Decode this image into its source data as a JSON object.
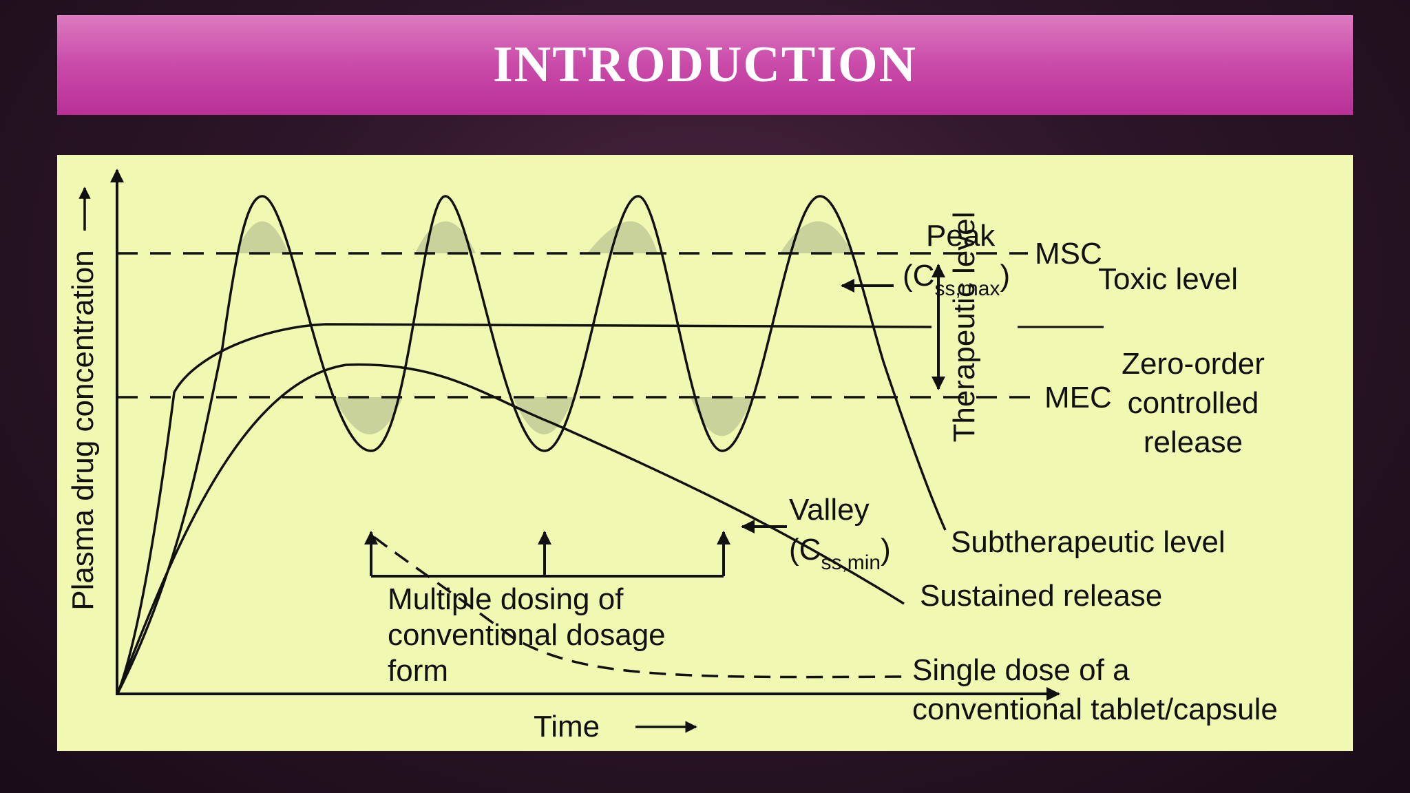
{
  "slide": {
    "title": "INTRODUCTION"
  },
  "diagram": {
    "y_axis_label": "Plasma drug concentration",
    "x_axis_label": "Time",
    "levels": {
      "msc": "MSC",
      "mec": "MEC",
      "toxic": "Toxic level",
      "therapeutic": "Therapeutic level",
      "subtherapeutic": "Subtherapeutic level"
    },
    "peak": {
      "label": "Peak",
      "symbol": "C",
      "subscript": "ss,max"
    },
    "valley": {
      "label": "Valley",
      "symbol": "C",
      "subscript": "ss,min"
    },
    "zero_order": {
      "line1": "Zero-order",
      "line2": "controlled",
      "line3": "release"
    },
    "sustained": "Sustained release",
    "single_dose": {
      "line1": "Single dose of a",
      "line2": "conventional tablet/capsule"
    },
    "multiple_dosing": {
      "line1": "Multiple dosing of",
      "line2": "conventional dosage",
      "line3": "form"
    }
  }
}
